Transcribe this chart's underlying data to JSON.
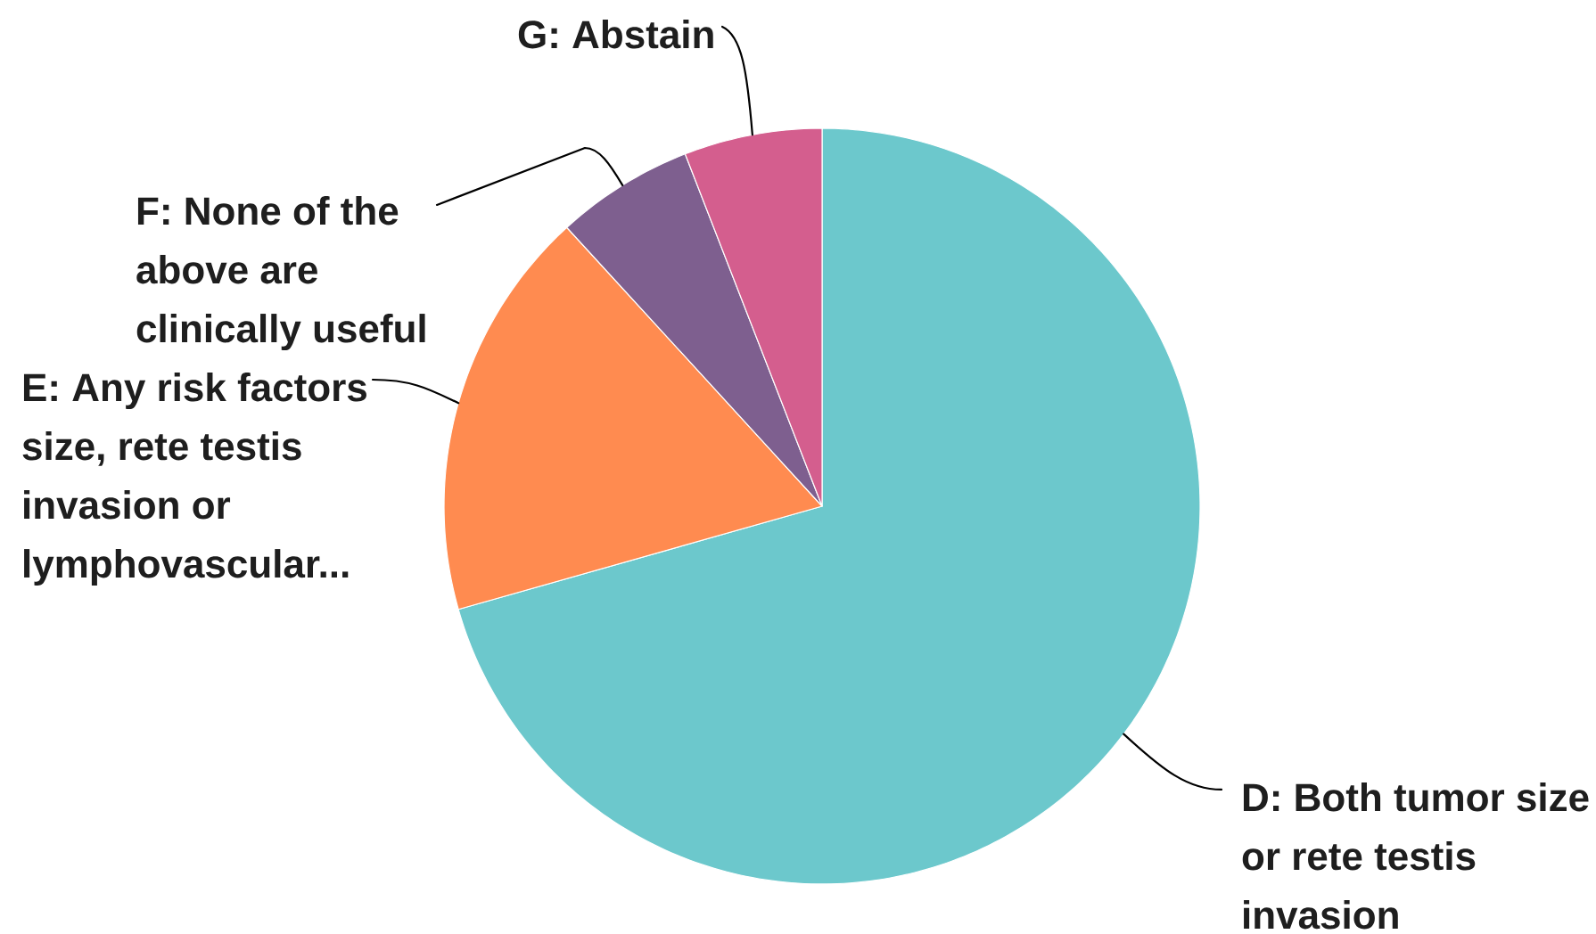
{
  "chart_data": {
    "type": "pie",
    "categories": [
      "D: Both tumor size or rete testis invasion",
      "E: Any risk factors size, rete testis invasion or lymphovascular...",
      "F: None of the above are clinically useful",
      "G: Abstain"
    ],
    "values": [
      70.6,
      17.6,
      5.9,
      5.9
    ],
    "colors": [
      "#6cc8cc",
      "#ff8b50",
      "#7e5f8f",
      "#d45e8e"
    ]
  }
}
